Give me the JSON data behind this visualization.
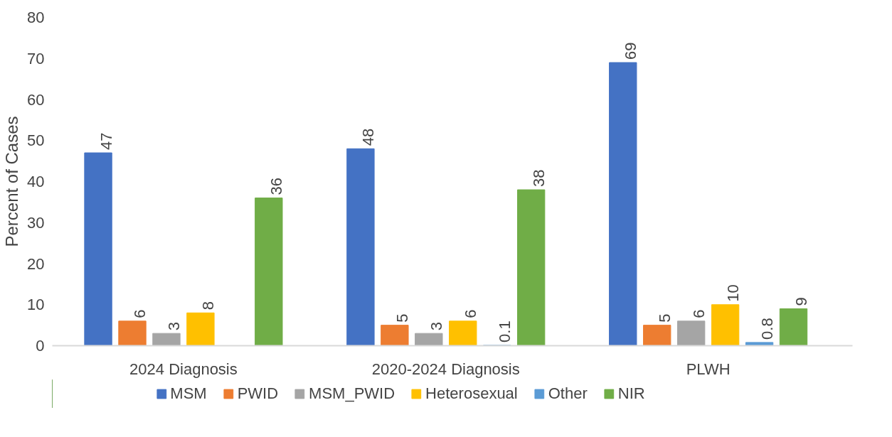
{
  "chart_data": {
    "type": "bar",
    "ylabel": "Percent of Cases",
    "categories": [
      "2024 Diagnosis",
      "2020-2024 Diagnosis",
      "PLWH"
    ],
    "series": [
      {
        "name": "MSM",
        "color": "#4472c4",
        "values": [
          47,
          48,
          69
        ]
      },
      {
        "name": "PWID",
        "color": "#ed7d31",
        "values": [
          6,
          5,
          5
        ]
      },
      {
        "name": "MSM_PWID",
        "color": "#a5a5a5",
        "values": [
          3,
          3,
          6
        ]
      },
      {
        "name": "Heterosexual",
        "color": "#ffc000",
        "values": [
          8,
          6,
          10
        ]
      },
      {
        "name": "Other",
        "color": "#5b9bd5",
        "values": [
          null,
          0.1,
          0.8
        ]
      },
      {
        "name": "NIR",
        "color": "#70ad47",
        "values": [
          36,
          38,
          9
        ]
      }
    ],
    "ylim": [
      0,
      80
    ],
    "yticks": [
      0,
      10,
      20,
      30,
      40,
      50,
      60,
      70,
      80
    ],
    "data_labels": true,
    "grid": false,
    "legend": "bottom"
  }
}
